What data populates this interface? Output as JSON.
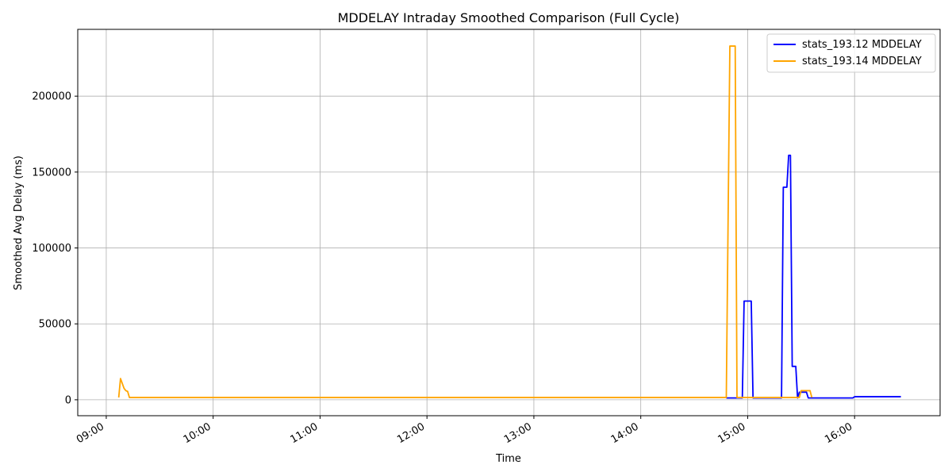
{
  "chart_data": {
    "type": "line",
    "title": "MDDELAY Intraday Smoothed Comparison (Full Cycle)",
    "xlabel": "Time",
    "ylabel": "Smoothed Avg Delay (ms)",
    "xlim": [
      "08:44",
      "16:48"
    ],
    "ylim": [
      -10500,
      244000
    ],
    "x_ticks": [
      "09:00",
      "10:00",
      "11:00",
      "12:00",
      "13:00",
      "14:00",
      "15:00",
      "16:00"
    ],
    "y_ticks": [
      0,
      50000,
      100000,
      150000,
      200000
    ],
    "y_tick_labels": [
      "0",
      "50000",
      "100000",
      "150000",
      "200000"
    ],
    "grid": true,
    "legend_position": "top-right",
    "series": [
      {
        "name": "stats_193.12 MDDELAY",
        "color": "#0000ff",
        "points": [
          [
            "14:48",
            1200
          ],
          [
            "14:54",
            1200
          ],
          [
            "14:57",
            1200
          ],
          [
            "14:58",
            65000
          ],
          [
            "15:02",
            65000
          ],
          [
            "15:03",
            1200
          ],
          [
            "15:19",
            1200
          ],
          [
            "15:20",
            140000
          ],
          [
            "15:22",
            140000
          ],
          [
            "15:23",
            161000
          ],
          [
            "15:24",
            161000
          ],
          [
            "15:25",
            22000
          ],
          [
            "15:27",
            22000
          ],
          [
            "15:28",
            1200
          ],
          [
            "15:29",
            5000
          ],
          [
            "15:33",
            5000
          ],
          [
            "15:34",
            1200
          ],
          [
            "15:59",
            1200
          ],
          [
            "16:00",
            2000
          ],
          [
            "16:26",
            2000
          ]
        ]
      },
      {
        "name": "stats_193.14 MDDELAY",
        "color": "#ffa500",
        "points": [
          [
            "09:07",
            1500
          ],
          [
            "09:08",
            14000
          ],
          [
            "09:10",
            7500
          ],
          [
            "09:11",
            6000
          ],
          [
            "09:12",
            5500
          ],
          [
            "09:13",
            1500
          ],
          [
            "14:48",
            1500
          ],
          [
            "14:50",
            233000
          ],
          [
            "14:53",
            233000
          ],
          [
            "14:54",
            1500
          ],
          [
            "15:29",
            1500
          ],
          [
            "15:30",
            6000
          ],
          [
            "15:35",
            6000
          ],
          [
            "15:36",
            1500
          ]
        ]
      }
    ]
  }
}
